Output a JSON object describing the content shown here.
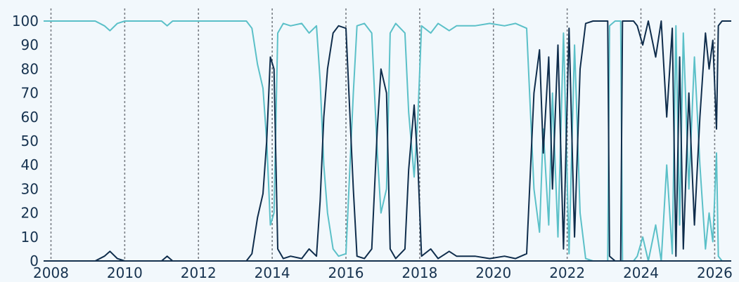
{
  "chart_data": {
    "type": "line",
    "title": "",
    "xlabel": "",
    "ylabel": "",
    "xlim": [
      2007.8,
      2026.45
    ],
    "ylim": [
      0,
      100
    ],
    "x_ticks": [
      "2008",
      "2010",
      "2012",
      "2014",
      "2016",
      "2018",
      "2020",
      "2022",
      "2024",
      "2026"
    ],
    "y_ticks": [
      "0",
      "10",
      "20",
      "30",
      "40",
      "50",
      "60",
      "70",
      "80",
      "90",
      "100"
    ],
    "vertical_dashed_lines": [
      2008,
      2010,
      2012,
      2014,
      2016,
      2018,
      2020,
      2022,
      2024,
      2026
    ],
    "grid": false,
    "legend": "none",
    "series": [
      {
        "color": "#5bc0c8",
        "points": [
          [
            2007.8,
            100
          ],
          [
            2009.2,
            100
          ],
          [
            2009.45,
            98
          ],
          [
            2009.6,
            96
          ],
          [
            2009.8,
            99
          ],
          [
            2010.0,
            100
          ],
          [
            2011.0,
            100
          ],
          [
            2011.15,
            98
          ],
          [
            2011.3,
            100
          ],
          [
            2013.3,
            100
          ],
          [
            2013.45,
            97
          ],
          [
            2013.6,
            82
          ],
          [
            2013.75,
            72
          ],
          [
            2013.85,
            50
          ],
          [
            2013.95,
            15
          ],
          [
            2014.05,
            20
          ],
          [
            2014.15,
            95
          ],
          [
            2014.3,
            99
          ],
          [
            2014.5,
            98
          ],
          [
            2014.8,
            99
          ],
          [
            2015.0,
            95
          ],
          [
            2015.2,
            98
          ],
          [
            2015.3,
            75
          ],
          [
            2015.4,
            40
          ],
          [
            2015.5,
            20
          ],
          [
            2015.65,
            5
          ],
          [
            2015.8,
            2
          ],
          [
            2016.0,
            3
          ],
          [
            2016.2,
            70
          ],
          [
            2016.3,
            98
          ],
          [
            2016.5,
            99
          ],
          [
            2016.7,
            95
          ],
          [
            2016.85,
            45
          ],
          [
            2016.95,
            20
          ],
          [
            2017.1,
            30
          ],
          [
            2017.2,
            95
          ],
          [
            2017.35,
            99
          ],
          [
            2017.6,
            95
          ],
          [
            2017.7,
            62
          ],
          [
            2017.85,
            35
          ],
          [
            2017.95,
            60
          ],
          [
            2018.05,
            98
          ],
          [
            2018.3,
            95
          ],
          [
            2018.5,
            99
          ],
          [
            2018.8,
            96
          ],
          [
            2019.0,
            98
          ],
          [
            2019.5,
            98
          ],
          [
            2019.9,
            99
          ],
          [
            2020.3,
            98
          ],
          [
            2020.6,
            99
          ],
          [
            2020.9,
            97
          ],
          [
            2021.1,
            30
          ],
          [
            2021.25,
            12
          ],
          [
            2021.35,
            55
          ],
          [
            2021.5,
            15
          ],
          [
            2021.6,
            70
          ],
          [
            2021.75,
            10
          ],
          [
            2021.9,
            95
          ],
          [
            2022.05,
            3
          ],
          [
            2022.2,
            90
          ],
          [
            2022.35,
            20
          ],
          [
            2022.5,
            1
          ],
          [
            2022.7,
            0
          ],
          [
            2023.0,
            0
          ],
          [
            2023.1,
            0
          ],
          [
            2023.15,
            98
          ],
          [
            2023.3,
            100
          ],
          [
            2023.45,
            100
          ],
          [
            2023.5,
            0
          ],
          [
            2023.8,
            0
          ],
          [
            2023.9,
            2
          ],
          [
            2024.05,
            10
          ],
          [
            2024.2,
            0
          ],
          [
            2024.4,
            15
          ],
          [
            2024.55,
            0
          ],
          [
            2024.7,
            40
          ],
          [
            2024.85,
            3
          ],
          [
            2024.95,
            98
          ],
          [
            2025.05,
            15
          ],
          [
            2025.15,
            95
          ],
          [
            2025.3,
            30
          ],
          [
            2025.45,
            85
          ],
          [
            2025.6,
            40
          ],
          [
            2025.75,
            5
          ],
          [
            2025.85,
            20
          ],
          [
            2025.95,
            8
          ],
          [
            2026.05,
            45
          ],
          [
            2026.1,
            2
          ],
          [
            2026.2,
            0
          ],
          [
            2026.45,
            0
          ]
        ]
      },
      {
        "color": "#0f2d4c",
        "points": [
          [
            2007.8,
            0
          ],
          [
            2009.2,
            0
          ],
          [
            2009.45,
            2
          ],
          [
            2009.6,
            4
          ],
          [
            2009.8,
            1
          ],
          [
            2010.0,
            0
          ],
          [
            2011.0,
            0
          ],
          [
            2011.15,
            2
          ],
          [
            2011.3,
            0
          ],
          [
            2013.3,
            0
          ],
          [
            2013.45,
            3
          ],
          [
            2013.6,
            18
          ],
          [
            2013.75,
            28
          ],
          [
            2013.85,
            50
          ],
          [
            2013.95,
            85
          ],
          [
            2014.05,
            80
          ],
          [
            2014.15,
            5
          ],
          [
            2014.3,
            1
          ],
          [
            2014.5,
            2
          ],
          [
            2014.8,
            1
          ],
          [
            2015.0,
            5
          ],
          [
            2015.2,
            2
          ],
          [
            2015.3,
            25
          ],
          [
            2015.4,
            60
          ],
          [
            2015.5,
            80
          ],
          [
            2015.65,
            95
          ],
          [
            2015.8,
            98
          ],
          [
            2016.0,
            97
          ],
          [
            2016.2,
            30
          ],
          [
            2016.3,
            2
          ],
          [
            2016.5,
            1
          ],
          [
            2016.7,
            5
          ],
          [
            2016.85,
            55
          ],
          [
            2016.95,
            80
          ],
          [
            2017.1,
            70
          ],
          [
            2017.2,
            5
          ],
          [
            2017.35,
            1
          ],
          [
            2017.6,
            5
          ],
          [
            2017.7,
            38
          ],
          [
            2017.85,
            65
          ],
          [
            2017.95,
            40
          ],
          [
            2018.05,
            2
          ],
          [
            2018.3,
            5
          ],
          [
            2018.5,
            1
          ],
          [
            2018.8,
            4
          ],
          [
            2019.0,
            2
          ],
          [
            2019.5,
            2
          ],
          [
            2019.9,
            1
          ],
          [
            2020.3,
            2
          ],
          [
            2020.6,
            1
          ],
          [
            2020.9,
            3
          ],
          [
            2021.1,
            70
          ],
          [
            2021.25,
            88
          ],
          [
            2021.35,
            45
          ],
          [
            2021.5,
            85
          ],
          [
            2021.6,
            30
          ],
          [
            2021.75,
            90
          ],
          [
            2021.9,
            5
          ],
          [
            2022.05,
            97
          ],
          [
            2022.2,
            10
          ],
          [
            2022.35,
            80
          ],
          [
            2022.5,
            99
          ],
          [
            2022.7,
            100
          ],
          [
            2023.0,
            100
          ],
          [
            2023.1,
            100
          ],
          [
            2023.15,
            2
          ],
          [
            2023.3,
            0
          ],
          [
            2023.45,
            0
          ],
          [
            2023.5,
            100
          ],
          [
            2023.8,
            100
          ],
          [
            2023.9,
            98
          ],
          [
            2024.05,
            90
          ],
          [
            2024.2,
            100
          ],
          [
            2024.4,
            85
          ],
          [
            2024.55,
            100
          ],
          [
            2024.7,
            60
          ],
          [
            2024.85,
            97
          ],
          [
            2024.95,
            2
          ],
          [
            2025.05,
            85
          ],
          [
            2025.15,
            5
          ],
          [
            2025.3,
            70
          ],
          [
            2025.45,
            15
          ],
          [
            2025.6,
            60
          ],
          [
            2025.75,
            95
          ],
          [
            2025.85,
            80
          ],
          [
            2025.95,
            92
          ],
          [
            2026.05,
            55
          ],
          [
            2026.1,
            98
          ],
          [
            2026.2,
            100
          ],
          [
            2026.45,
            100
          ]
        ]
      }
    ]
  }
}
